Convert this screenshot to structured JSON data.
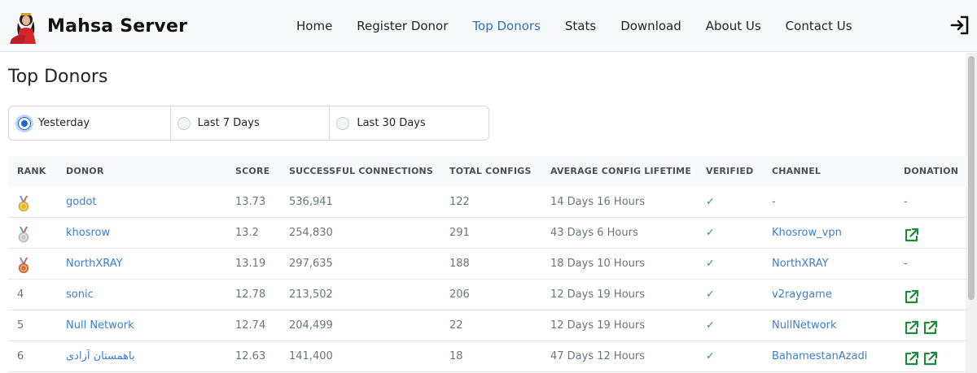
{
  "brand": {
    "name": "Mahsa Server"
  },
  "nav": {
    "items": [
      {
        "label": "Home"
      },
      {
        "label": "Register Donor"
      },
      {
        "label": "Top Donors"
      },
      {
        "label": "Stats"
      },
      {
        "label": "Download"
      },
      {
        "label": "About Us"
      },
      {
        "label": "Contact Us"
      }
    ],
    "active_index": 2
  },
  "page": {
    "title": "Top Donors"
  },
  "period_filter": {
    "options": [
      {
        "label": "Yesterday",
        "selected": true
      },
      {
        "label": "Last 7 Days",
        "selected": false
      },
      {
        "label": "Last 30 Days",
        "selected": false
      }
    ]
  },
  "table": {
    "columns": [
      "Rank",
      "Donor",
      "Score",
      "Successful Connections",
      "Total Configs",
      "Average Config Lifetime",
      "Verified",
      "Channel",
      "Donation"
    ],
    "rows": [
      {
        "rank": "",
        "medal": "gold",
        "donor": "godot",
        "score": "13.73",
        "connections": "536,941",
        "configs": "122",
        "lifetime": "14 Days 16 Hours",
        "verified": "✓",
        "channel": "-",
        "channel_link": false,
        "donation_links": 0,
        "donation_text": "-"
      },
      {
        "rank": "",
        "medal": "silver",
        "donor": "khosrow",
        "score": "13.2",
        "connections": "254,830",
        "configs": "291",
        "lifetime": "43 Days 6 Hours",
        "verified": "✓",
        "channel": "Khosrow_vpn",
        "channel_link": true,
        "donation_links": 1,
        "donation_text": ""
      },
      {
        "rank": "",
        "medal": "bronze",
        "donor": "NorthXRAY",
        "score": "13.19",
        "connections": "297,635",
        "configs": "188",
        "lifetime": "18 Days 10 Hours",
        "verified": "✓",
        "channel": "NorthXRAY",
        "channel_link": true,
        "donation_links": 0,
        "donation_text": "-"
      },
      {
        "rank": "4",
        "medal": "",
        "donor": "sonic",
        "score": "12.78",
        "connections": "213,502",
        "configs": "206",
        "lifetime": "12 Days 19 Hours",
        "verified": "✓",
        "channel": "v2raygame",
        "channel_link": true,
        "donation_links": 1,
        "donation_text": ""
      },
      {
        "rank": "5",
        "medal": "",
        "donor": "Null Network",
        "score": "12.74",
        "connections": "204,499",
        "configs": "22",
        "lifetime": "12 Days 19 Hours",
        "verified": "✓",
        "channel": "NullNetwork",
        "channel_link": true,
        "donation_links": 2,
        "donation_text": ""
      },
      {
        "rank": "6",
        "medal": "",
        "donor": "باهمستان آزادی",
        "score": "12.63",
        "connections": "141,400",
        "configs": "18",
        "lifetime": "47 Days 12 Hours",
        "verified": "✓",
        "channel": "BahamestanAzadi",
        "channel_link": true,
        "donation_links": 2,
        "donation_text": ""
      }
    ]
  },
  "icons": {
    "login": "login-icon",
    "donation": "external-link-icon",
    "medals": [
      "gold-medal-icon",
      "silver-medal-icon",
      "bronze-medal-icon"
    ]
  },
  "colors": {
    "link": "#3b7fd0",
    "active_nav": "#2f6fba",
    "verified": "#2e9b5b",
    "donation_icon": "#1e8a3a",
    "radio_selected": "#1f64d6",
    "gold": "#e8b42a",
    "silver": "#c7c9cc",
    "bronze": "#d0753a"
  }
}
